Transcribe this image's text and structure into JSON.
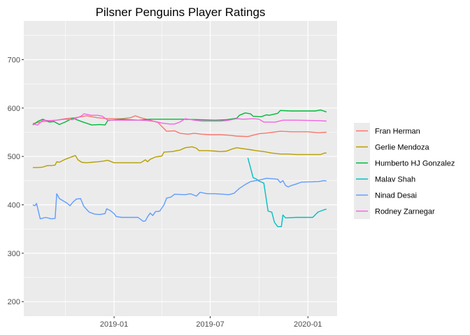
{
  "chart_data": {
    "type": "line",
    "title": "Pilsner Penguins Player Ratings",
    "xlabel": "",
    "ylabel": "",
    "x_axis": {
      "type": "date",
      "range": [
        "2018-07-15",
        "2020-02-25"
      ],
      "ticks": [
        {
          "date": "2019-01-01",
          "label": "2019-01"
        },
        {
          "date": "2019-07-01",
          "label": "2019-07"
        },
        {
          "date": "2020-01-01",
          "label": "2020-01"
        }
      ],
      "minor_ticks": [
        "2018-10-01",
        "2019-04-01",
        "2019-10-01"
      ]
    },
    "y_axis": {
      "range": [
        170,
        780
      ],
      "ticks": [
        200,
        300,
        400,
        500,
        600,
        700
      ],
      "minor_ticks": [
        250,
        350,
        450,
        550,
        650,
        750
      ]
    },
    "grid": true,
    "panel_background": "#ebebeb",
    "legend_position": "right",
    "series": [
      {
        "name": "Fran Herman",
        "color": "#f8766d",
        "points": [
          [
            "2018-08-01",
            568
          ],
          [
            "2018-08-20",
            572
          ],
          [
            "2018-09-10",
            574
          ],
          [
            "2018-10-01",
            578
          ],
          [
            "2018-10-20",
            580
          ],
          [
            "2018-11-10",
            584
          ],
          [
            "2018-12-01",
            580
          ],
          [
            "2018-12-20",
            578
          ],
          [
            "2019-01-15",
            578
          ],
          [
            "2019-02-01",
            580
          ],
          [
            "2019-02-10",
            584
          ],
          [
            "2019-02-20",
            580
          ],
          [
            "2019-03-10",
            575
          ],
          [
            "2019-03-25",
            570
          ],
          [
            "2019-04-01",
            562
          ],
          [
            "2019-04-10",
            552
          ],
          [
            "2019-04-25",
            553
          ],
          [
            "2019-05-05",
            548
          ],
          [
            "2019-05-20",
            546
          ],
          [
            "2019-06-01",
            548
          ],
          [
            "2019-06-15",
            546
          ],
          [
            "2019-07-01",
            545
          ],
          [
            "2019-07-20",
            545
          ],
          [
            "2019-08-05",
            544
          ],
          [
            "2019-08-20",
            542
          ],
          [
            "2019-09-10",
            541
          ],
          [
            "2019-09-20",
            544
          ],
          [
            "2019-10-01",
            547
          ],
          [
            "2019-10-20",
            549
          ],
          [
            "2019-11-10",
            552
          ],
          [
            "2019-12-01",
            551
          ],
          [
            "2020-01-01",
            551
          ],
          [
            "2020-01-20",
            549
          ],
          [
            "2020-02-05",
            550
          ]
        ]
      },
      {
        "name": "Gerlie Mendoza",
        "color": "#b79f00",
        "points": [
          [
            "2018-08-01",
            477
          ],
          [
            "2018-08-10",
            477
          ],
          [
            "2018-08-20",
            478
          ],
          [
            "2018-08-28",
            481
          ],
          [
            "2018-09-05",
            481
          ],
          [
            "2018-09-12",
            482
          ],
          [
            "2018-09-15",
            489
          ],
          [
            "2018-09-20",
            488
          ],
          [
            "2018-10-01",
            494
          ],
          [
            "2018-10-15",
            500
          ],
          [
            "2018-10-20",
            502
          ],
          [
            "2018-10-25",
            493
          ],
          [
            "2018-11-01",
            488
          ],
          [
            "2018-11-10",
            487
          ],
          [
            "2018-11-20",
            488
          ],
          [
            "2018-12-01",
            489
          ],
          [
            "2018-12-10",
            490
          ],
          [
            "2018-12-20",
            492
          ],
          [
            "2019-01-01",
            487
          ],
          [
            "2019-01-20",
            487
          ],
          [
            "2019-02-10",
            487
          ],
          [
            "2019-02-20",
            487
          ],
          [
            "2019-03-01",
            493
          ],
          [
            "2019-03-05",
            489
          ],
          [
            "2019-03-10",
            494
          ],
          [
            "2019-03-20",
            499
          ],
          [
            "2019-04-01",
            501
          ],
          [
            "2019-04-05",
            509
          ],
          [
            "2019-04-20",
            510
          ],
          [
            "2019-05-05",
            513
          ],
          [
            "2019-05-15",
            518
          ],
          [
            "2019-05-28",
            520
          ],
          [
            "2019-06-05",
            517
          ],
          [
            "2019-06-10",
            512
          ],
          [
            "2019-06-25",
            512
          ],
          [
            "2019-07-10",
            511
          ],
          [
            "2019-07-20",
            510
          ],
          [
            "2019-08-01",
            511
          ],
          [
            "2019-08-10",
            515
          ],
          [
            "2019-08-20",
            518
          ],
          [
            "2019-09-01",
            516
          ],
          [
            "2019-09-15",
            514
          ],
          [
            "2019-09-25",
            512
          ],
          [
            "2019-10-10",
            510
          ],
          [
            "2019-10-25",
            507
          ],
          [
            "2019-11-10",
            505
          ],
          [
            "2019-11-25",
            505
          ],
          [
            "2019-12-10",
            504
          ],
          [
            "2020-01-01",
            504
          ],
          [
            "2020-01-25",
            504
          ],
          [
            "2020-02-01",
            507
          ],
          [
            "2020-02-05",
            507
          ]
        ]
      },
      {
        "name": "Humberto HJ Gonzalez",
        "color": "#00ba38",
        "points": [
          [
            "2018-08-01",
            565
          ],
          [
            "2018-08-10",
            572
          ],
          [
            "2018-08-20",
            577
          ],
          [
            "2018-09-01",
            571
          ],
          [
            "2018-09-10",
            572
          ],
          [
            "2018-09-20",
            566
          ],
          [
            "2018-10-01",
            571
          ],
          [
            "2018-10-15",
            579
          ],
          [
            "2018-11-01",
            572
          ],
          [
            "2018-11-20",
            565
          ],
          [
            "2018-12-05",
            566
          ],
          [
            "2018-12-15",
            565
          ],
          [
            "2018-12-20",
            574
          ],
          [
            "2019-01-15",
            577
          ],
          [
            "2019-02-15",
            575
          ],
          [
            "2019-03-10",
            577
          ],
          [
            "2019-04-10",
            577
          ],
          [
            "2019-05-10",
            577
          ],
          [
            "2019-06-10",
            576
          ],
          [
            "2019-07-10",
            575
          ],
          [
            "2019-08-01",
            576
          ],
          [
            "2019-08-20",
            579
          ],
          [
            "2019-08-25",
            585
          ],
          [
            "2019-09-05",
            590
          ],
          [
            "2019-09-15",
            588
          ],
          [
            "2019-09-20",
            583
          ],
          [
            "2019-10-05",
            582
          ],
          [
            "2019-10-15",
            586
          ],
          [
            "2019-10-20",
            585
          ],
          [
            "2019-11-05",
            589
          ],
          [
            "2019-11-10",
            595
          ],
          [
            "2019-12-01",
            594
          ],
          [
            "2020-01-15",
            594
          ],
          [
            "2020-01-25",
            596
          ],
          [
            "2020-02-05",
            592
          ]
        ]
      },
      {
        "name": "Malav Shah",
        "color": "#00bfc4",
        "points": [
          [
            "2019-09-10",
            497
          ],
          [
            "2019-09-20",
            456
          ],
          [
            "2019-09-25",
            454
          ],
          [
            "2019-10-01",
            449
          ],
          [
            "2019-10-10",
            445
          ],
          [
            "2019-10-18",
            387
          ],
          [
            "2019-10-25",
            385
          ],
          [
            "2019-10-30",
            364
          ],
          [
            "2019-11-05",
            355
          ],
          [
            "2019-11-12",
            355
          ],
          [
            "2019-11-15",
            379
          ],
          [
            "2019-11-20",
            373
          ],
          [
            "2019-12-10",
            374
          ],
          [
            "2020-01-10",
            374
          ],
          [
            "2020-01-20",
            385
          ],
          [
            "2020-02-01",
            390
          ],
          [
            "2020-02-05",
            391
          ]
        ]
      },
      {
        "name": "Ninad Desai",
        "color": "#619cff",
        "points": [
          [
            "2018-08-01",
            400
          ],
          [
            "2018-08-05",
            398
          ],
          [
            "2018-08-08",
            403
          ],
          [
            "2018-08-15",
            371
          ],
          [
            "2018-08-25",
            374
          ],
          [
            "2018-09-05",
            371
          ],
          [
            "2018-09-12",
            372
          ],
          [
            "2018-09-15",
            423
          ],
          [
            "2018-09-20",
            413
          ],
          [
            "2018-10-05",
            403
          ],
          [
            "2018-10-10",
            398
          ],
          [
            "2018-10-15",
            405
          ],
          [
            "2018-10-22",
            412
          ],
          [
            "2018-10-30",
            413
          ],
          [
            "2018-11-05",
            397
          ],
          [
            "2018-11-15",
            385
          ],
          [
            "2018-11-25",
            381
          ],
          [
            "2018-12-05",
            380
          ],
          [
            "2018-12-15",
            382
          ],
          [
            "2018-12-18",
            392
          ],
          [
            "2018-12-25",
            388
          ],
          [
            "2019-01-01",
            382
          ],
          [
            "2019-01-05",
            376
          ],
          [
            "2019-01-15",
            374
          ],
          [
            "2019-01-30",
            374
          ],
          [
            "2019-02-15",
            374
          ],
          [
            "2019-02-25",
            366
          ],
          [
            "2019-03-01",
            367
          ],
          [
            "2019-03-05",
            375
          ],
          [
            "2019-03-10",
            383
          ],
          [
            "2019-03-15",
            378
          ],
          [
            "2019-03-20",
            386
          ],
          [
            "2019-03-28",
            387
          ],
          [
            "2019-04-05",
            400
          ],
          [
            "2019-04-10",
            414
          ],
          [
            "2019-04-18",
            416
          ],
          [
            "2019-04-25",
            422
          ],
          [
            "2019-05-15",
            421
          ],
          [
            "2019-05-25",
            423
          ],
          [
            "2019-06-05",
            418
          ],
          [
            "2019-06-12",
            426
          ],
          [
            "2019-06-25",
            423
          ],
          [
            "2019-07-10",
            423
          ],
          [
            "2019-07-25",
            422
          ],
          [
            "2019-08-05",
            421
          ],
          [
            "2019-08-15",
            424
          ],
          [
            "2019-08-25",
            434
          ],
          [
            "2019-09-05",
            442
          ],
          [
            "2019-09-15",
            448
          ],
          [
            "2019-09-25",
            450
          ],
          [
            "2019-10-05",
            452
          ],
          [
            "2019-10-15",
            455
          ],
          [
            "2019-10-25",
            454
          ],
          [
            "2019-11-05",
            453
          ],
          [
            "2019-11-10",
            446
          ],
          [
            "2019-11-15",
            450
          ],
          [
            "2019-11-20",
            440
          ],
          [
            "2019-11-25",
            437
          ],
          [
            "2019-12-01",
            440
          ],
          [
            "2019-12-10",
            443
          ],
          [
            "2019-12-20",
            447
          ],
          [
            "2020-01-20",
            448
          ],
          [
            "2020-02-01",
            450
          ],
          [
            "2020-02-05",
            449
          ]
        ]
      },
      {
        "name": "Rodney Zarnegar",
        "color": "#f564e3",
        "points": [
          [
            "2018-08-01",
            567
          ],
          [
            "2018-08-10",
            565
          ],
          [
            "2018-08-20",
            575
          ],
          [
            "2018-09-01",
            574
          ],
          [
            "2018-09-15",
            575
          ],
          [
            "2018-10-01",
            577
          ],
          [
            "2018-10-15",
            576
          ],
          [
            "2018-11-01",
            584
          ],
          [
            "2018-11-05",
            588
          ],
          [
            "2018-11-20",
            585
          ],
          [
            "2018-12-01",
            585
          ],
          [
            "2018-12-10",
            583
          ],
          [
            "2018-12-20",
            575
          ],
          [
            "2019-01-20",
            575
          ],
          [
            "2019-02-20",
            575
          ],
          [
            "2019-03-05",
            574
          ],
          [
            "2019-03-20",
            572
          ],
          [
            "2019-04-01",
            569
          ],
          [
            "2019-04-15",
            567
          ],
          [
            "2019-04-25",
            567
          ],
          [
            "2019-05-05",
            571
          ],
          [
            "2019-05-15",
            578
          ],
          [
            "2019-06-01",
            575
          ],
          [
            "2019-06-15",
            573
          ],
          [
            "2019-07-01",
            573
          ],
          [
            "2019-07-20",
            573
          ],
          [
            "2019-08-01",
            574
          ],
          [
            "2019-08-20",
            578
          ],
          [
            "2019-09-01",
            577
          ],
          [
            "2019-09-20",
            578
          ],
          [
            "2019-10-01",
            577
          ],
          [
            "2019-10-10",
            571
          ],
          [
            "2019-11-01",
            571
          ],
          [
            "2019-11-15",
            575
          ],
          [
            "2019-12-10",
            575
          ],
          [
            "2020-01-20",
            574
          ],
          [
            "2020-02-05",
            573
          ]
        ]
      }
    ]
  }
}
